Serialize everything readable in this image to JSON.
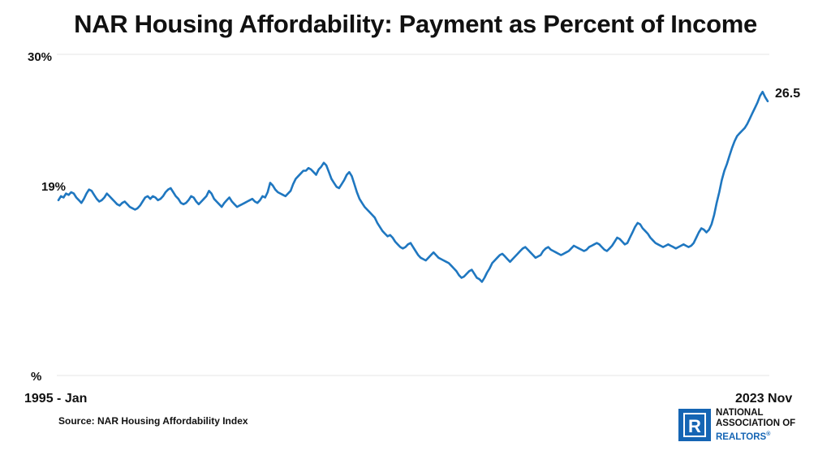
{
  "chart_data": {
    "type": "line",
    "title": "NAR Housing Affordability: Payment as Percent of Income",
    "x_start_label": "1995 - Jan",
    "x_end_label": "2023 Nov",
    "y_top_label": "30%",
    "y_bottom_label": "%",
    "y_annotation_label": "19%",
    "end_value_label": "26.5",
    "ylim": [
      6,
      30
    ],
    "grid": true,
    "series": [
      {
        "color": "#1f77c0",
        "x_start": "1995-01",
        "x_end": "2023-11",
        "values": [
          19.1,
          19.4,
          19.3,
          19.6,
          19.5,
          19.7,
          19.6,
          19.3,
          19.1,
          18.9,
          19.2,
          19.6,
          19.9,
          19.8,
          19.5,
          19.2,
          19.0,
          19.1,
          19.3,
          19.6,
          19.4,
          19.2,
          19.0,
          18.8,
          18.7,
          18.9,
          19.0,
          18.8,
          18.6,
          18.5,
          18.4,
          18.5,
          18.7,
          19.0,
          19.3,
          19.4,
          19.2,
          19.4,
          19.3,
          19.1,
          19.2,
          19.4,
          19.7,
          19.9,
          20.0,
          19.7,
          19.4,
          19.2,
          18.9,
          18.8,
          18.9,
          19.1,
          19.4,
          19.3,
          19.0,
          18.8,
          19.0,
          19.2,
          19.4,
          19.8,
          19.6,
          19.2,
          19.0,
          18.8,
          18.6,
          18.9,
          19.1,
          19.3,
          19.0,
          18.8,
          18.6,
          18.7,
          18.8,
          18.9,
          19.0,
          19.1,
          19.2,
          19.0,
          18.9,
          19.1,
          19.4,
          19.3,
          19.7,
          20.4,
          20.2,
          19.9,
          19.7,
          19.6,
          19.5,
          19.4,
          19.6,
          19.8,
          20.3,
          20.7,
          20.9,
          21.1,
          21.3,
          21.3,
          21.5,
          21.4,
          21.2,
          21.0,
          21.4,
          21.6,
          21.9,
          21.7,
          21.2,
          20.7,
          20.4,
          20.1,
          20.0,
          20.3,
          20.6,
          21.0,
          21.2,
          20.9,
          20.3,
          19.7,
          19.2,
          18.9,
          18.6,
          18.4,
          18.2,
          18.0,
          17.8,
          17.4,
          17.1,
          16.8,
          16.6,
          16.4,
          16.5,
          16.3,
          16.0,
          15.8,
          15.6,
          15.5,
          15.6,
          15.8,
          15.9,
          15.6,
          15.3,
          15.0,
          14.8,
          14.7,
          14.6,
          14.8,
          15.0,
          15.2,
          15.0,
          14.8,
          14.7,
          14.6,
          14.5,
          14.4,
          14.2,
          14.0,
          13.8,
          13.5,
          13.3,
          13.4,
          13.6,
          13.8,
          13.9,
          13.6,
          13.3,
          13.2,
          13.0,
          13.3,
          13.7,
          14.0,
          14.4,
          14.6,
          14.8,
          15.0,
          15.1,
          14.9,
          14.7,
          14.5,
          14.7,
          14.9,
          15.1,
          15.3,
          15.5,
          15.6,
          15.4,
          15.2,
          15.0,
          14.8,
          14.9,
          15.0,
          15.3,
          15.5,
          15.6,
          15.4,
          15.3,
          15.2,
          15.1,
          15.0,
          15.1,
          15.2,
          15.3,
          15.5,
          15.7,
          15.6,
          15.5,
          15.4,
          15.3,
          15.4,
          15.6,
          15.7,
          15.8,
          15.9,
          15.8,
          15.6,
          15.4,
          15.3,
          15.5,
          15.7,
          16.0,
          16.3,
          16.2,
          16.0,
          15.8,
          15.9,
          16.3,
          16.7,
          17.1,
          17.4,
          17.3,
          17.0,
          16.8,
          16.6,
          16.3,
          16.1,
          15.9,
          15.8,
          15.7,
          15.6,
          15.7,
          15.8,
          15.7,
          15.6,
          15.5,
          15.6,
          15.7,
          15.8,
          15.7,
          15.6,
          15.7,
          15.9,
          16.3,
          16.7,
          17.0,
          16.9,
          16.7,
          16.9,
          17.3,
          18.0,
          18.9,
          19.7,
          20.6,
          21.3,
          21.8,
          22.4,
          23.0,
          23.5,
          23.9,
          24.1,
          24.3,
          24.5,
          24.8,
          25.2,
          25.6,
          26.0,
          26.4,
          26.9,
          27.2,
          26.8,
          26.5
        ]
      }
    ]
  },
  "source_text": "Source: NAR Housing Affordability Index",
  "logo": {
    "line1": "NATIONAL",
    "line2": "ASSOCIATION OF",
    "line3": "REALTORS",
    "reg_mark": "®",
    "mark_letter": "R",
    "color": "#1565b4"
  }
}
